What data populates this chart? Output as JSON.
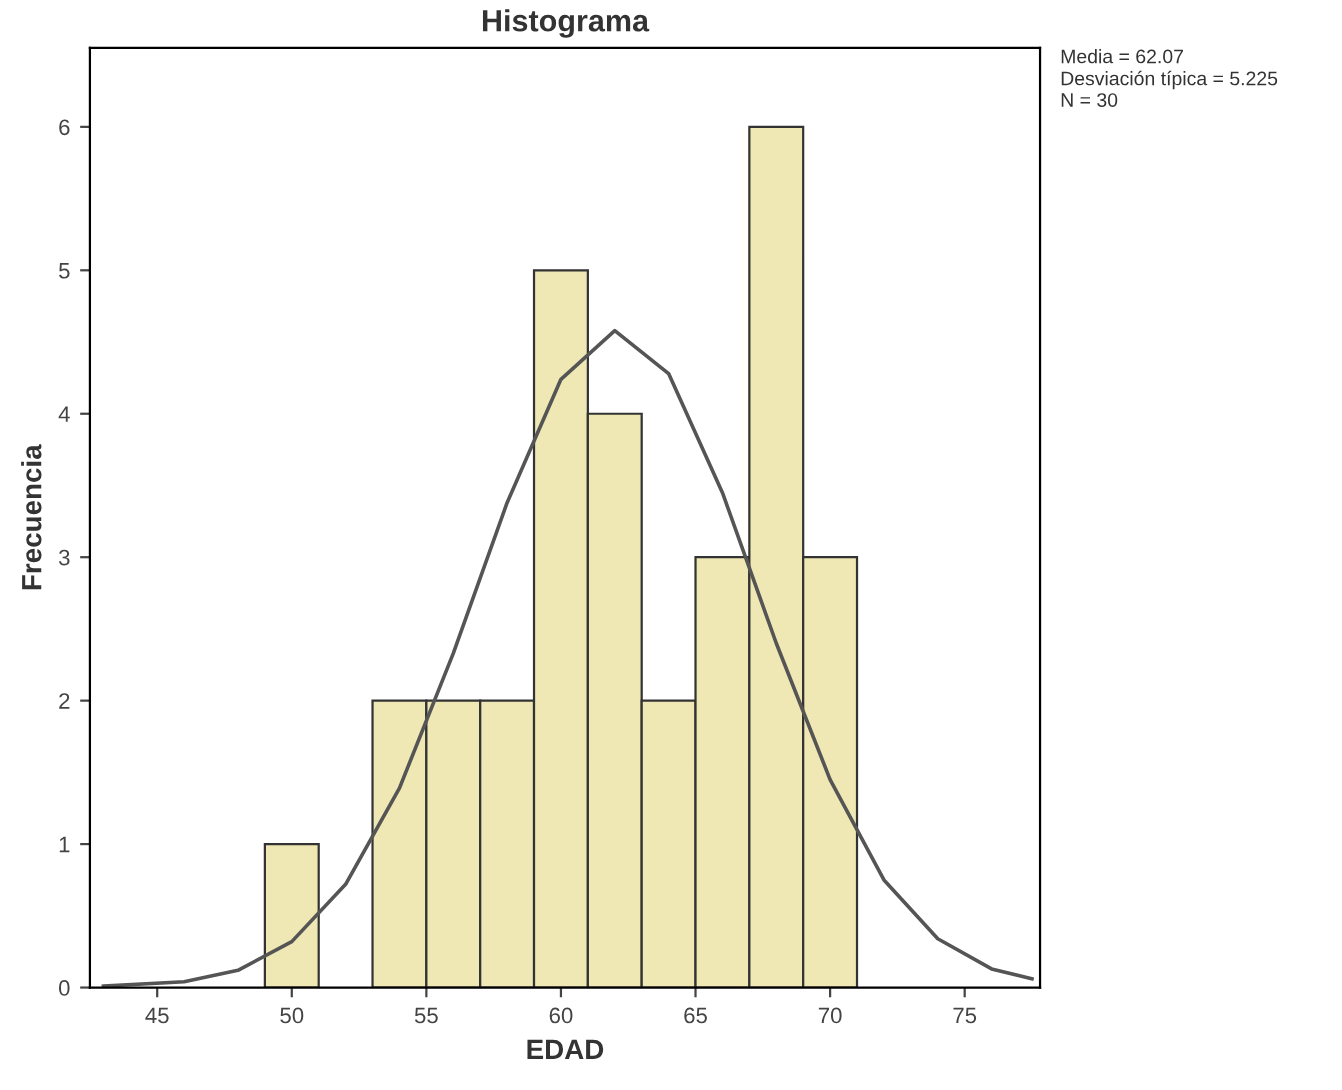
{
  "chart_data": {
    "type": "histogram",
    "title": "Histograma",
    "xlabel": "EDAD",
    "ylabel": "Frecuencia",
    "bins": [
      49,
      51,
      53,
      55,
      57,
      59,
      61,
      63,
      65,
      67,
      69,
      71
    ],
    "values": [
      1,
      0,
      2,
      2,
      2,
      5,
      4,
      2,
      3,
      6,
      3
    ],
    "color": "#f0e8b4",
    "series": [
      {
        "type": "line",
        "color": "#555555",
        "x": [
          43,
          46,
          48,
          50,
          52,
          54,
          56,
          58,
          60,
          62,
          64,
          66,
          68,
          70,
          72,
          74,
          76,
          77.5
        ],
        "values": [
          0.01,
          0.04,
          0.12,
          0.32,
          0.72,
          1.39,
          2.33,
          3.38,
          4.24,
          4.58,
          4.28,
          3.45,
          2.4,
          1.45,
          0.75,
          0.34,
          0.13,
          0.06
        ]
      }
    ],
    "xlim": [
      42.5,
      77.8
    ],
    "xticks": [
      45,
      50,
      55,
      60,
      65,
      70,
      75
    ],
    "ylim": [
      0,
      6.55
    ],
    "yticks": [
      0,
      1,
      2,
      3,
      4,
      5,
      6
    ],
    "annotations": [
      "Media = 62.07",
      "Desviación típica = 5.225",
      "N = 30"
    ],
    "grid": false,
    "legend": false
  }
}
